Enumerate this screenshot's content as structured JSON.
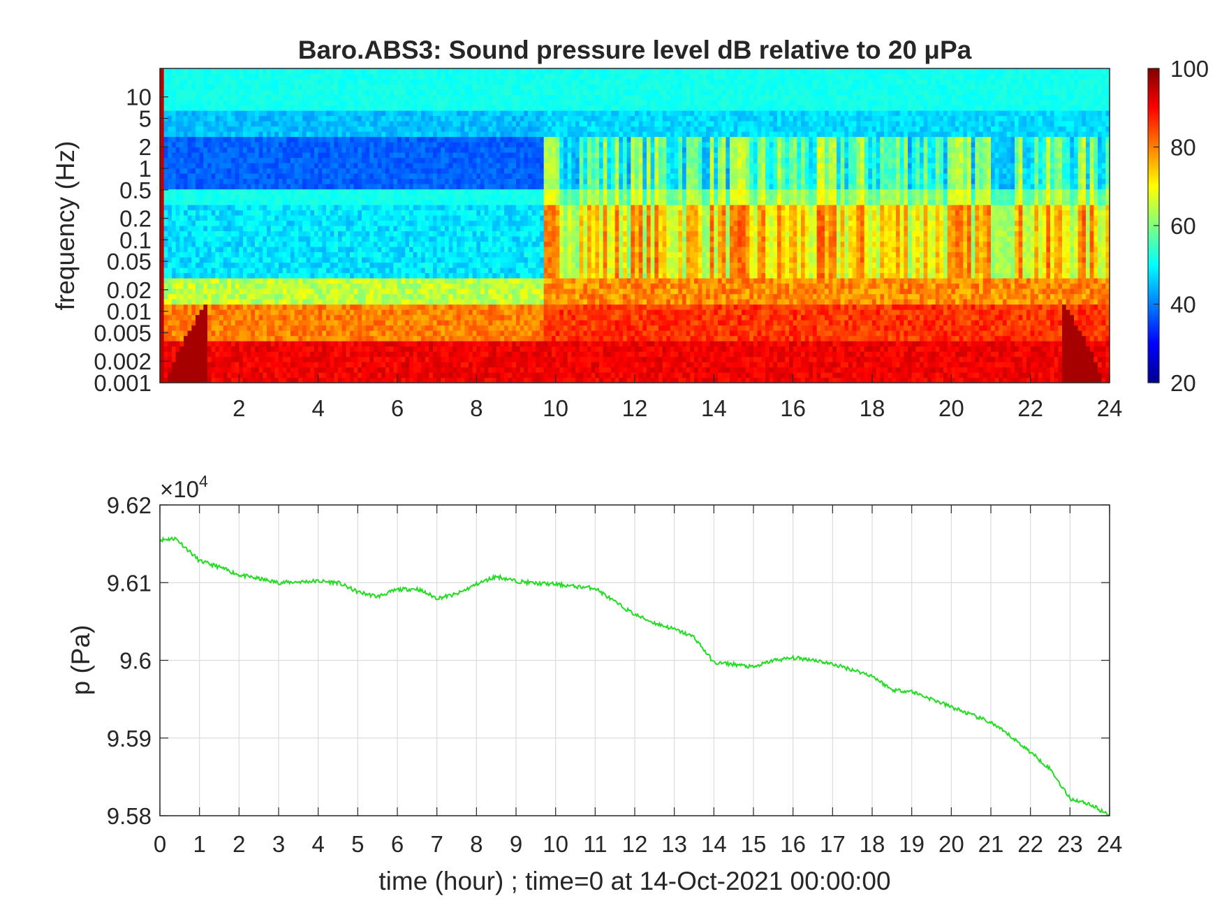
{
  "chart_data": [
    {
      "type": "heatmap",
      "title": "Baro.ABS3: Sound pressure level dB relative to 20 μPa",
      "xlabel": "",
      "ylabel": "frequency (Hz)",
      "x_range": [
        0,
        24
      ],
      "x_ticks": [
        2,
        4,
        6,
        8,
        10,
        12,
        14,
        16,
        18,
        20,
        22,
        24
      ],
      "y_scale": "log",
      "y_range": [
        0.001,
        25
      ],
      "y_ticks": [
        0.001,
        0.002,
        0.005,
        0.01,
        0.02,
        0.05,
        0.1,
        0.2,
        0.5,
        1,
        2,
        5,
        10
      ],
      "y_tick_labels": [
        "0.001",
        "0.002",
        "0.005",
        "0.01",
        "0.02",
        "0.05",
        "0.1",
        "0.2",
        "0.5",
        "1",
        "2",
        "5",
        "10"
      ],
      "colormap": "jet",
      "colorbar": {
        "range": [
          20,
          100
        ],
        "ticks": [
          20,
          40,
          60,
          80,
          100
        ]
      },
      "features": [
        {
          "time_range": [
            0,
            9.7
          ],
          "freq_range": [
            0.001,
            0.01
          ],
          "level_db": 85
        },
        {
          "time_range": [
            0,
            9.7
          ],
          "freq_range": [
            0.02,
            0.3
          ],
          "level_db": 48
        },
        {
          "time_range": [
            0,
            9.7
          ],
          "freq_range": [
            0.3,
            5
          ],
          "level_db": 38
        },
        {
          "time_range": [
            9.7,
            24
          ],
          "freq_range": [
            0.001,
            0.02
          ],
          "level_db": 88
        },
        {
          "time_range": [
            9.7,
            24
          ],
          "freq_range": [
            0.02,
            0.3
          ],
          "level_db": 75
        },
        {
          "time_range": [
            9.7,
            24
          ],
          "freq_range": [
            0.3,
            5
          ],
          "level_db": 55
        },
        {
          "time_range": [
            0,
            24
          ],
          "freq_range": [
            5,
            25
          ],
          "level_db": 52
        }
      ]
    },
    {
      "type": "line",
      "title": "",
      "xlabel": "time (hour) ; time=0 at 14-Oct-2021 00:00:00",
      "ylabel": "p (Pa)",
      "y_exponent_label": "×10",
      "y_exponent": "4",
      "xlim": [
        0,
        24
      ],
      "ylim": [
        9.58,
        9.62
      ],
      "x_ticks": [
        0,
        1,
        2,
        3,
        4,
        5,
        6,
        7,
        8,
        9,
        10,
        11,
        12,
        13,
        14,
        15,
        16,
        17,
        18,
        19,
        20,
        21,
        22,
        23,
        24
      ],
      "y_ticks": [
        9.58,
        9.59,
        9.6,
        9.61,
        9.62
      ],
      "y_tick_labels": [
        "9.58",
        "9.59",
        "9.6",
        "9.61",
        "9.62"
      ],
      "grid": true,
      "line_color": "#22dd22",
      "x": [
        0,
        0.4,
        1,
        1.5,
        2,
        2.5,
        3,
        3.5,
        4,
        4.5,
        5,
        5.5,
        6,
        6.5,
        7,
        7.5,
        8,
        8.5,
        9,
        9.5,
        10,
        10.5,
        11,
        11.5,
        12,
        12.5,
        13,
        13.5,
        14,
        14.5,
        15,
        15.5,
        16,
        16.5,
        17,
        17.5,
        18,
        18.5,
        19,
        19.5,
        20,
        20.5,
        21,
        21.5,
        22,
        22.5,
        23,
        23.5,
        24
      ],
      "y": [
        9.6155,
        9.6157,
        9.6128,
        9.612,
        9.611,
        9.6105,
        9.61,
        9.6101,
        9.6102,
        9.61,
        9.6088,
        9.6082,
        9.6091,
        9.6092,
        9.608,
        9.6085,
        9.6098,
        9.6108,
        9.6102,
        9.6099,
        9.6098,
        9.6095,
        9.6093,
        9.6075,
        9.6059,
        9.6048,
        9.604,
        9.603,
        9.5997,
        9.5995,
        9.5991,
        9.6,
        9.6003,
        9.6001,
        9.5995,
        9.5988,
        9.598,
        9.5962,
        9.596,
        9.595,
        9.594,
        9.593,
        9.592,
        9.5902,
        9.5882,
        9.586,
        9.5822,
        9.5815,
        9.58
      ]
    }
  ]
}
